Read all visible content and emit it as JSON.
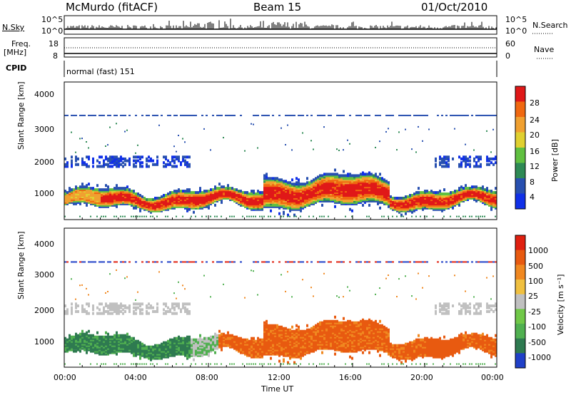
{
  "header": {
    "station": "McMurdo (fitACF)",
    "beam": "Beam 15",
    "date": "01/Oct/2010"
  },
  "top_panel": {
    "left_label": "N.Sky",
    "right_label": "N.Search",
    "left_ticks": [
      "10^5",
      "10^0"
    ],
    "right_ticks": [
      "10^5",
      "10^0"
    ]
  },
  "freq_panel": {
    "label_top": "Freq.",
    "label_unit": "[MHz]",
    "left_ticks": [
      "18",
      "8"
    ],
    "right_ticks": [
      "60",
      "0"
    ],
    "right_label": "Nave"
  },
  "cpid": {
    "label": "CPID",
    "value": "normal (fast) 151"
  },
  "chart_data": [
    {
      "type": "heatmap",
      "quantity": "Power",
      "ylabel": "Slant Range [km]",
      "yticks": [
        "1000",
        "2000",
        "3000",
        "4000"
      ],
      "ylim": [
        200,
        4600
      ],
      "colorbar_label": "Power [dB]",
      "colorbar_ticks": [
        "4",
        "8",
        "12",
        "16",
        "20",
        "24",
        "28"
      ],
      "colors": [
        "#1030e8",
        "#2850b0",
        "#2e8a55",
        "#60c040",
        "#e0d030",
        "#f0a030",
        "#f06810",
        "#e01818"
      ]
    },
    {
      "type": "heatmap",
      "quantity": "Velocity",
      "ylabel": "Slant Range [km]",
      "yticks": [
        "1000",
        "2000",
        "3000",
        "4000"
      ],
      "ylim": [
        200,
        4600
      ],
      "colorbar_label": "Velocity [m s⁻¹]",
      "colorbar_ticks": [
        "1000",
        "500",
        "100",
        "25",
        "-25",
        "-100",
        "-500",
        "-1000"
      ],
      "colors": [
        "#2040c8",
        "#2e7a50",
        "#50b050",
        "#70c848",
        "#c0c0c0",
        "#f0c040",
        "#f08820",
        "#e85a10",
        "#e02010"
      ],
      "xlabel": "Time UT",
      "xticks": [
        "00:00",
        "04:00",
        "08:00",
        "12:00",
        "16:00",
        "20:00",
        "00:00"
      ]
    }
  ]
}
